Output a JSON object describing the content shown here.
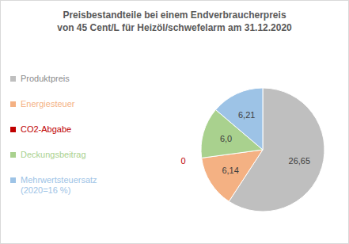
{
  "chart_data": {
    "type": "pie",
    "title": "Preisbestandteile bei einem Endverbraucherpreis\nvon 45 Cent/L für Heizöl/schwefelarm am 31.12.2020",
    "categories": [
      "Produktpreis",
      "Energiesteuer",
      "CO2-Abgabe",
      "Deckungsbeitrag",
      "Mehrwertsteuersatz\n(2020=16 %)"
    ],
    "values": [
      26.65,
      6.14,
      0,
      6.0,
      6.21
    ],
    "value_labels": [
      "26,65",
      "6,14",
      "0",
      "6,0",
      "6,21"
    ],
    "colors": [
      "#bfbfbf",
      "#f4b183",
      "#c00000",
      "#a9d18e",
      "#9dc3e6"
    ],
    "data_labels": true,
    "legend": "left"
  }
}
